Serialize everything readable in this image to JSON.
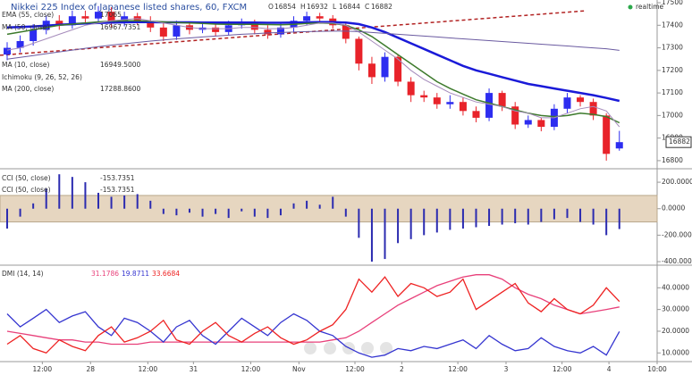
{
  "chart_data": [
    {
      "type": "candlestick",
      "title": "Nikkei 225 Index of Japanese listed shares, 60, FXCM",
      "status": "realtime",
      "ohlc_labels": [
        "O",
        "H",
        "L",
        "C"
      ],
      "x": [
        0,
        1,
        2,
        3,
        4,
        5,
        6,
        7,
        8,
        9,
        10,
        11,
        12,
        13,
        14,
        15,
        16,
        17,
        18,
        19,
        20,
        21,
        22,
        23,
        24,
        25,
        26,
        27,
        28,
        29,
        30,
        31,
        32,
        33,
        34,
        35,
        36,
        37,
        38,
        39,
        40,
        41,
        42,
        43,
        44,
        45,
        46,
        47
      ],
      "xlim": [
        -0.55,
        49.9
      ],
      "open": [
        17270,
        17300,
        17330,
        17380,
        17420,
        17400,
        17440,
        17430,
        17460,
        17410,
        17440,
        17420,
        17390,
        17350,
        17400,
        17380,
        17390,
        17370,
        17400,
        17410,
        17380,
        17360,
        17390,
        17420,
        17440,
        17430,
        17400,
        17340,
        17230,
        17170,
        17260,
        17150,
        17090,
        17080,
        17050,
        17060,
        17020,
        16990,
        17100,
        17040,
        16960,
        16980,
        16950,
        17030,
        17080,
        17060,
        17000,
        16854
      ],
      "high": [
        17325,
        17355,
        17405,
        17445,
        17445,
        17465,
        17465,
        17485,
        17480,
        17460,
        17455,
        17440,
        17410,
        17420,
        17415,
        17410,
        17405,
        17420,
        17430,
        17425,
        17400,
        17410,
        17440,
        17460,
        17455,
        17445,
        17410,
        17350,
        17260,
        17280,
        17270,
        17170,
        17110,
        17100,
        17090,
        17080,
        17040,
        17120,
        17110,
        17060,
        17000,
        16990,
        17050,
        17100,
        17090,
        17075,
        17010,
        16932
      ],
      "low": [
        17245,
        17280,
        17310,
        17360,
        17380,
        17385,
        17410,
        17415,
        17390,
        17395,
        17400,
        17370,
        17330,
        17335,
        17360,
        17365,
        17350,
        17355,
        17385,
        17360,
        17340,
        17345,
        17370,
        17400,
        17410,
        17385,
        17320,
        17200,
        17140,
        17150,
        17130,
        17060,
        17060,
        17030,
        17030,
        17000,
        16970,
        16975,
        17020,
        16940,
        16945,
        16930,
        16935,
        17010,
        17040,
        16980,
        16800,
        16844
      ],
      "close": [
        17300,
        17330,
        17380,
        17420,
        17400,
        17440,
        17430,
        17460,
        17410,
        17440,
        17420,
        17390,
        17350,
        17400,
        17380,
        17390,
        17370,
        17400,
        17410,
        17380,
        17360,
        17390,
        17420,
        17440,
        17430,
        17400,
        17340,
        17230,
        17170,
        17260,
        17150,
        17090,
        17080,
        17050,
        17060,
        17020,
        16990,
        17100,
        17040,
        16960,
        16980,
        16950,
        17030,
        17080,
        17060,
        17000,
        16830,
        16882
      ],
      "up_color": "#2d2df0",
      "down_color": "#e8232a",
      "series": [
        {
          "name": "EMA (55, close)",
          "color": "#1a1ad8",
          "width": 2.5,
          "values": [
            17390,
            17392,
            17395,
            17398,
            17402,
            17405,
            17408,
            17410,
            17412,
            17413,
            17414,
            17414,
            17413,
            17413,
            17413,
            17412,
            17412,
            17412,
            17412,
            17412,
            17411,
            17411,
            17412,
            17413,
            17414,
            17414,
            17412,
            17405,
            17390,
            17370,
            17345,
            17320,
            17295,
            17270,
            17245,
            17220,
            17200,
            17185,
            17170,
            17155,
            17140,
            17130,
            17120,
            17110,
            17100,
            17090,
            17078,
            17065
          ]
        },
        {
          "name": "MA (50, close)",
          "color": "#3d7a2c",
          "width": 1.5,
          "values": [
            17360,
            17370,
            17380,
            17390,
            17400,
            17405,
            17410,
            17415,
            17418,
            17420,
            17420,
            17418,
            17415,
            17412,
            17410,
            17408,
            17405,
            17404,
            17404,
            17404,
            17403,
            17402,
            17404,
            17408,
            17410,
            17408,
            17400,
            17380,
            17350,
            17310,
            17270,
            17230,
            17190,
            17150,
            17120,
            17095,
            17070,
            17055,
            17040,
            17025,
            17010,
            17000,
            16995,
            17000,
            17010,
            17005,
            16995,
            16967.7351
          ]
        },
        {
          "name": "MA (10, close)",
          "color": "#a58bbb",
          "width": 1,
          "legend_value": "16949.5000",
          "values": [
            17290,
            17300,
            17320,
            17340,
            17360,
            17380,
            17400,
            17410,
            17420,
            17425,
            17430,
            17420,
            17410,
            17400,
            17390,
            17385,
            17385,
            17385,
            17390,
            17390,
            17385,
            17385,
            17390,
            17400,
            17410,
            17410,
            17400,
            17370,
            17330,
            17290,
            17250,
            17200,
            17160,
            17130,
            17100,
            17080,
            17060,
            17050,
            17040,
            17020,
            17010,
            16990,
            16990,
            17010,
            17030,
            17040,
            17020,
            16949.5
          ]
        },
        {
          "name": "MA (200, close)",
          "color": "#6a5aa0",
          "width": 1,
          "legend_value": "17288.8600",
          "values": [
            17250,
            17258,
            17266,
            17274,
            17282,
            17290,
            17298,
            17305,
            17312,
            17318,
            17324,
            17330,
            17335,
            17340,
            17344,
            17348,
            17352,
            17356,
            17360,
            17363,
            17366,
            17368,
            17370,
            17372,
            17373,
            17374,
            17374,
            17372,
            17368,
            17364,
            17360,
            17356,
            17352,
            17348,
            17344,
            17340,
            17336,
            17332,
            17328,
            17324,
            17320,
            17316,
            17312,
            17308,
            17304,
            17300,
            17296,
            17288.86
          ]
        }
      ],
      "studies": [
        "Ichimoku (9, 26, 52, 26)"
      ],
      "trendline": {
        "color": "#b22222",
        "x": [
          -0.55,
          44.4
        ],
        "values": [
          17267,
          17464
        ]
      },
      "ylim": [
        16768,
        17512
      ],
      "yticks": [
        16800,
        16900,
        17000,
        17100,
        17200,
        17300,
        17400,
        17500
      ]
    },
    {
      "type": "bar",
      "name": "CCI (50, close)",
      "color": "#2b2bb0",
      "band": [
        -100,
        100
      ],
      "band_color": "#e6d6c0",
      "values": [
        -150,
        -60,
        40,
        150,
        260,
        240,
        200,
        120,
        90,
        100,
        110,
        60,
        -40,
        -50,
        -30,
        -60,
        -40,
        -70,
        -20,
        -60,
        -70,
        -50,
        40,
        60,
        30,
        90,
        -60,
        -220,
        -400,
        -380,
        -260,
        -230,
        -200,
        -180,
        -160,
        -150,
        -140,
        -130,
        -120,
        -110,
        -120,
        -100,
        -80,
        -70,
        -100,
        -120,
        -200,
        -153.7351
      ],
      "ylim": [
        -420,
        295
      ],
      "yticks": [
        {
          "value": 200,
          "label": "200.0000"
        },
        {
          "value": 0,
          "label": "0.0000"
        },
        {
          "value": -200,
          "label": "-200.0000"
        },
        {
          "value": -400,
          "label": "-400.0000"
        }
      ]
    },
    {
      "type": "line",
      "name": "DMI (14, 14)",
      "series": [
        {
          "color": "#e8407a",
          "values": [
            20,
            19,
            18,
            17,
            16,
            16,
            15,
            15,
            14,
            14,
            14,
            15,
            15,
            15,
            15,
            15,
            15,
            15,
            15,
            15,
            15,
            15,
            15,
            15,
            15,
            16,
            17,
            20,
            24,
            28,
            32,
            35,
            38,
            41,
            43,
            45,
            46,
            46,
            44,
            40,
            37,
            35,
            32,
            30,
            28,
            29,
            30,
            31.1786
          ]
        },
        {
          "color": "#3535d0",
          "values": [
            28,
            22,
            26,
            30,
            24,
            27,
            29,
            22,
            18,
            26,
            24,
            20,
            15,
            22,
            25,
            18,
            14,
            20,
            26,
            22,
            18,
            24,
            28,
            25,
            20,
            18,
            13,
            10,
            8,
            9,
            12,
            11,
            13,
            12,
            14,
            16,
            12,
            18,
            14,
            11,
            12,
            17,
            13,
            11,
            10,
            13,
            9,
            19.8711
          ]
        },
        {
          "color": "#ee2222",
          "values": [
            14,
            18,
            12,
            10,
            16,
            13,
            11,
            18,
            22,
            15,
            17,
            20,
            25,
            16,
            14,
            20,
            24,
            18,
            15,
            19,
            22,
            17,
            14,
            16,
            20,
            23,
            30,
            44,
            38,
            45,
            36,
            42,
            40,
            36,
            38,
            44,
            30,
            34,
            38,
            42,
            33,
            29,
            35,
            30,
            28,
            32,
            40,
            33.6684
          ]
        }
      ],
      "ylim": [
        6,
        50
      ],
      "yticks": [
        {
          "value": 40,
          "label": "40.0000"
        },
        {
          "value": 30,
          "label": "30.0000"
        },
        {
          "value": 20,
          "label": "20.0000"
        },
        {
          "value": 10,
          "label": "10.0000"
        }
      ],
      "xticks": [
        {
          "value": 2.7,
          "label": "12:00"
        },
        {
          "value": 6.4,
          "label": "28"
        },
        {
          "value": 10.8,
          "label": "12:00"
        },
        {
          "value": 14.3,
          "label": "31"
        },
        {
          "value": 18.7,
          "label": "12:00"
        },
        {
          "value": 22.4,
          "label": "Nov"
        },
        {
          "value": 26.7,
          "label": "12:00"
        },
        {
          "value": 30.3,
          "label": "2"
        },
        {
          "value": 34.6,
          "label": "12:00"
        },
        {
          "value": 38.3,
          "label": "3"
        },
        {
          "value": 42.6,
          "label": "12:00"
        },
        {
          "value": 46.2,
          "label": "4"
        },
        {
          "value": 49.9,
          "label": "10:00"
        }
      ]
    }
  ]
}
